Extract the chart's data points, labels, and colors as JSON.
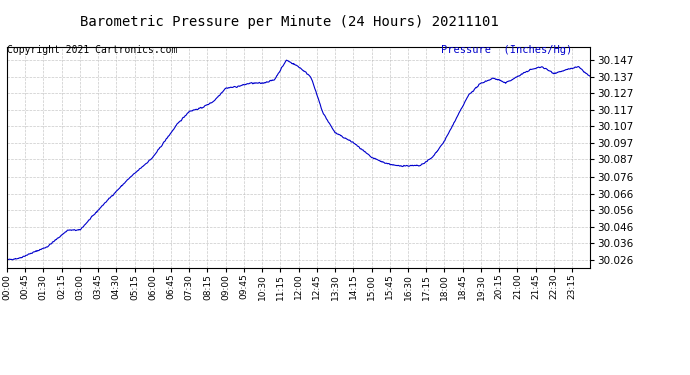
{
  "title": "Barometric Pressure per Minute (24 Hours) 20211101",
  "ylabel": "Pressure  (Inches/Hg)",
  "copyright": "Copyright 2021 Cartronics.com",
  "line_color": "#0000CC",
  "background_color": "#ffffff",
  "grid_color": "#bbbbbb",
  "ylim_min": 30.021,
  "ylim_max": 30.155,
  "yticks": [
    30.026,
    30.036,
    30.046,
    30.056,
    30.066,
    30.076,
    30.087,
    30.097,
    30.107,
    30.117,
    30.127,
    30.137,
    30.147
  ],
  "xtick_labels": [
    "00:00",
    "00:45",
    "01:30",
    "02:15",
    "03:00",
    "03:45",
    "04:30",
    "05:15",
    "06:00",
    "06:45",
    "07:30",
    "08:15",
    "09:00",
    "09:45",
    "10:30",
    "11:15",
    "12:00",
    "12:45",
    "13:30",
    "14:15",
    "15:00",
    "15:45",
    "16:30",
    "17:15",
    "18:00",
    "18:45",
    "19:30",
    "20:15",
    "21:00",
    "21:45",
    "22:30",
    "23:15"
  ],
  "title_color": "#000000",
  "ylabel_color": "#0000CC",
  "copyright_color": "#000000",
  "keypoints_t": [
    0,
    30,
    60,
    100,
    150,
    180,
    240,
    300,
    360,
    420,
    450,
    480,
    510,
    540,
    570,
    600,
    630,
    660,
    690,
    720,
    750,
    780,
    810,
    855,
    900,
    930,
    960,
    990,
    1020,
    1050,
    1080,
    1110,
    1140,
    1170,
    1200,
    1215,
    1230,
    1260,
    1290,
    1320,
    1350,
    1380,
    1410,
    1439
  ],
  "keypoints_v": [
    30.026,
    30.027,
    30.03,
    30.034,
    30.044,
    30.044,
    30.06,
    30.075,
    30.088,
    30.108,
    30.116,
    30.118,
    30.122,
    30.13,
    30.131,
    30.133,
    30.133,
    30.135,
    30.147,
    30.143,
    30.137,
    30.115,
    30.103,
    30.097,
    30.088,
    30.085,
    30.083,
    30.083,
    30.083,
    30.088,
    30.098,
    30.112,
    30.126,
    30.133,
    30.136,
    30.135,
    30.133,
    30.137,
    30.141,
    30.143,
    30.139,
    30.141,
    30.143,
    30.137
  ]
}
